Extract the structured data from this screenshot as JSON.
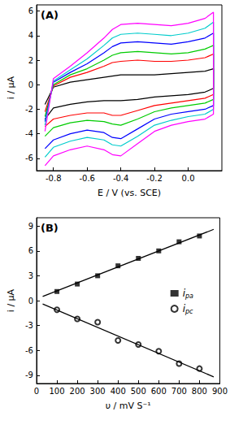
{
  "chart_data": [
    {
      "type": "line",
      "annotation": "(A)",
      "xlabel": "E / V (vs. SCE)",
      "ylabel": "i / µA",
      "xlim": [
        -0.9,
        0.2
      ],
      "xticks": [
        -0.8,
        -0.6,
        -0.4,
        -0.2,
        {
          "value": 0,
          "label": "0.0"
        }
      ],
      "ylim": [
        -7,
        6.5
      ],
      "yticks": [
        -6,
        -4,
        -2,
        0,
        2,
        4,
        6
      ],
      "grid": false,
      "x": [
        -0.85,
        -0.8,
        -0.7,
        -0.6,
        -0.5,
        -0.45,
        -0.4,
        -0.3,
        -0.2,
        -0.1,
        0,
        0.1,
        0.15,
        0.15,
        0.1,
        0,
        -0.1,
        -0.2,
        -0.3,
        -0.4,
        -0.45,
        -0.5,
        -0.6,
        -0.7,
        -0.8,
        -0.85
      ],
      "series": [
        {
          "color": "#000000",
          "values": [
            -1.6,
            -0.2,
            0.2,
            0.4,
            0.6,
            0.7,
            0.8,
            0.8,
            0.8,
            0.9,
            1.0,
            1.1,
            1.3,
            -0.3,
            -0.6,
            -0.8,
            -0.9,
            -1.0,
            -1.2,
            -1.3,
            -1.3,
            -1.3,
            -1.4,
            -1.6,
            -1.9,
            -2.8
          ]
        },
        {
          "color": "#ff0000",
          "values": [
            -2.2,
            -0.1,
            0.6,
            1.0,
            1.5,
            1.8,
            1.9,
            2.0,
            1.9,
            1.9,
            2.0,
            2.2,
            2.5,
            -0.8,
            -1.1,
            -1.3,
            -1.5,
            -1.7,
            -2.1,
            -2.5,
            -2.5,
            -2.3,
            -2.3,
            -2.5,
            -2.8,
            -3.4
          ]
        },
        {
          "color": "#00cc00",
          "values": [
            -2.6,
            0.0,
            0.8,
            1.3,
            2.0,
            2.4,
            2.6,
            2.7,
            2.6,
            2.5,
            2.6,
            2.9,
            3.2,
            -1.2,
            -1.5,
            -1.7,
            -1.9,
            -2.2,
            -2.8,
            -3.3,
            -3.2,
            -3.0,
            -2.9,
            -3.1,
            -3.5,
            -4.2
          ]
        },
        {
          "color": "#0000ff",
          "values": [
            -3.0,
            0.2,
            1.0,
            1.7,
            2.6,
            3.1,
            3.4,
            3.5,
            3.4,
            3.3,
            3.5,
            3.8,
            4.2,
            -1.7,
            -2.0,
            -2.2,
            -2.4,
            -2.8,
            -3.6,
            -4.4,
            -4.3,
            -3.9,
            -3.7,
            -4.0,
            -4.5,
            -5.2
          ]
        },
        {
          "color": "#00cccc",
          "values": [
            -3.3,
            0.3,
            1.2,
            2.1,
            3.2,
            3.8,
            4.1,
            4.2,
            4.1,
            4.0,
            4.2,
            4.6,
            5.1,
            -2.0,
            -2.4,
            -2.6,
            -2.9,
            -3.3,
            -4.2,
            -5.0,
            -4.9,
            -4.5,
            -4.3,
            -4.6,
            -5.1,
            -5.9
          ]
        },
        {
          "color": "#ff00ff",
          "values": [
            -3.8,
            0.5,
            1.5,
            2.6,
            3.8,
            4.5,
            4.9,
            5.0,
            4.9,
            4.8,
            5.0,
            5.4,
            5.9,
            -2.4,
            -2.8,
            -3.0,
            -3.3,
            -3.8,
            -4.8,
            -5.8,
            -5.7,
            -5.3,
            -5.0,
            -5.3,
            -5.8,
            -6.6
          ]
        }
      ]
    },
    {
      "type": "scatter",
      "annotation": "(B)",
      "xlabel": "υ / mV S⁻¹",
      "ylabel": "i / µA",
      "xlim": [
        0,
        900
      ],
      "xticks": [
        0,
        100,
        200,
        300,
        400,
        500,
        600,
        700,
        800,
        900
      ],
      "ylim": [
        -10,
        10
      ],
      "yticks": [
        -9,
        -6,
        -3,
        0,
        3,
        6,
        9
      ],
      "grid": false,
      "legend": "right",
      "x": [
        100,
        200,
        300,
        400,
        500,
        600,
        700,
        800
      ],
      "series": [
        {
          "name": "ipa",
          "color": "#000000",
          "marker": "square",
          "values": [
            1.1,
            2.0,
            3.0,
            4.2,
            5.1,
            6.0,
            7.1,
            7.8
          ],
          "fit": {
            "x": [
              30,
              870
            ],
            "values": [
              0.5,
              8.6
            ]
          }
        },
        {
          "name": "ipc",
          "color": "#000000",
          "marker": "open_circle",
          "values": [
            -1.1,
            -2.2,
            -2.6,
            -4.8,
            -5.3,
            -6.1,
            -7.6,
            -8.2
          ],
          "fit": {
            "x": [
              30,
              870
            ],
            "values": [
              -0.4,
              -9.2
            ]
          }
        }
      ]
    }
  ]
}
